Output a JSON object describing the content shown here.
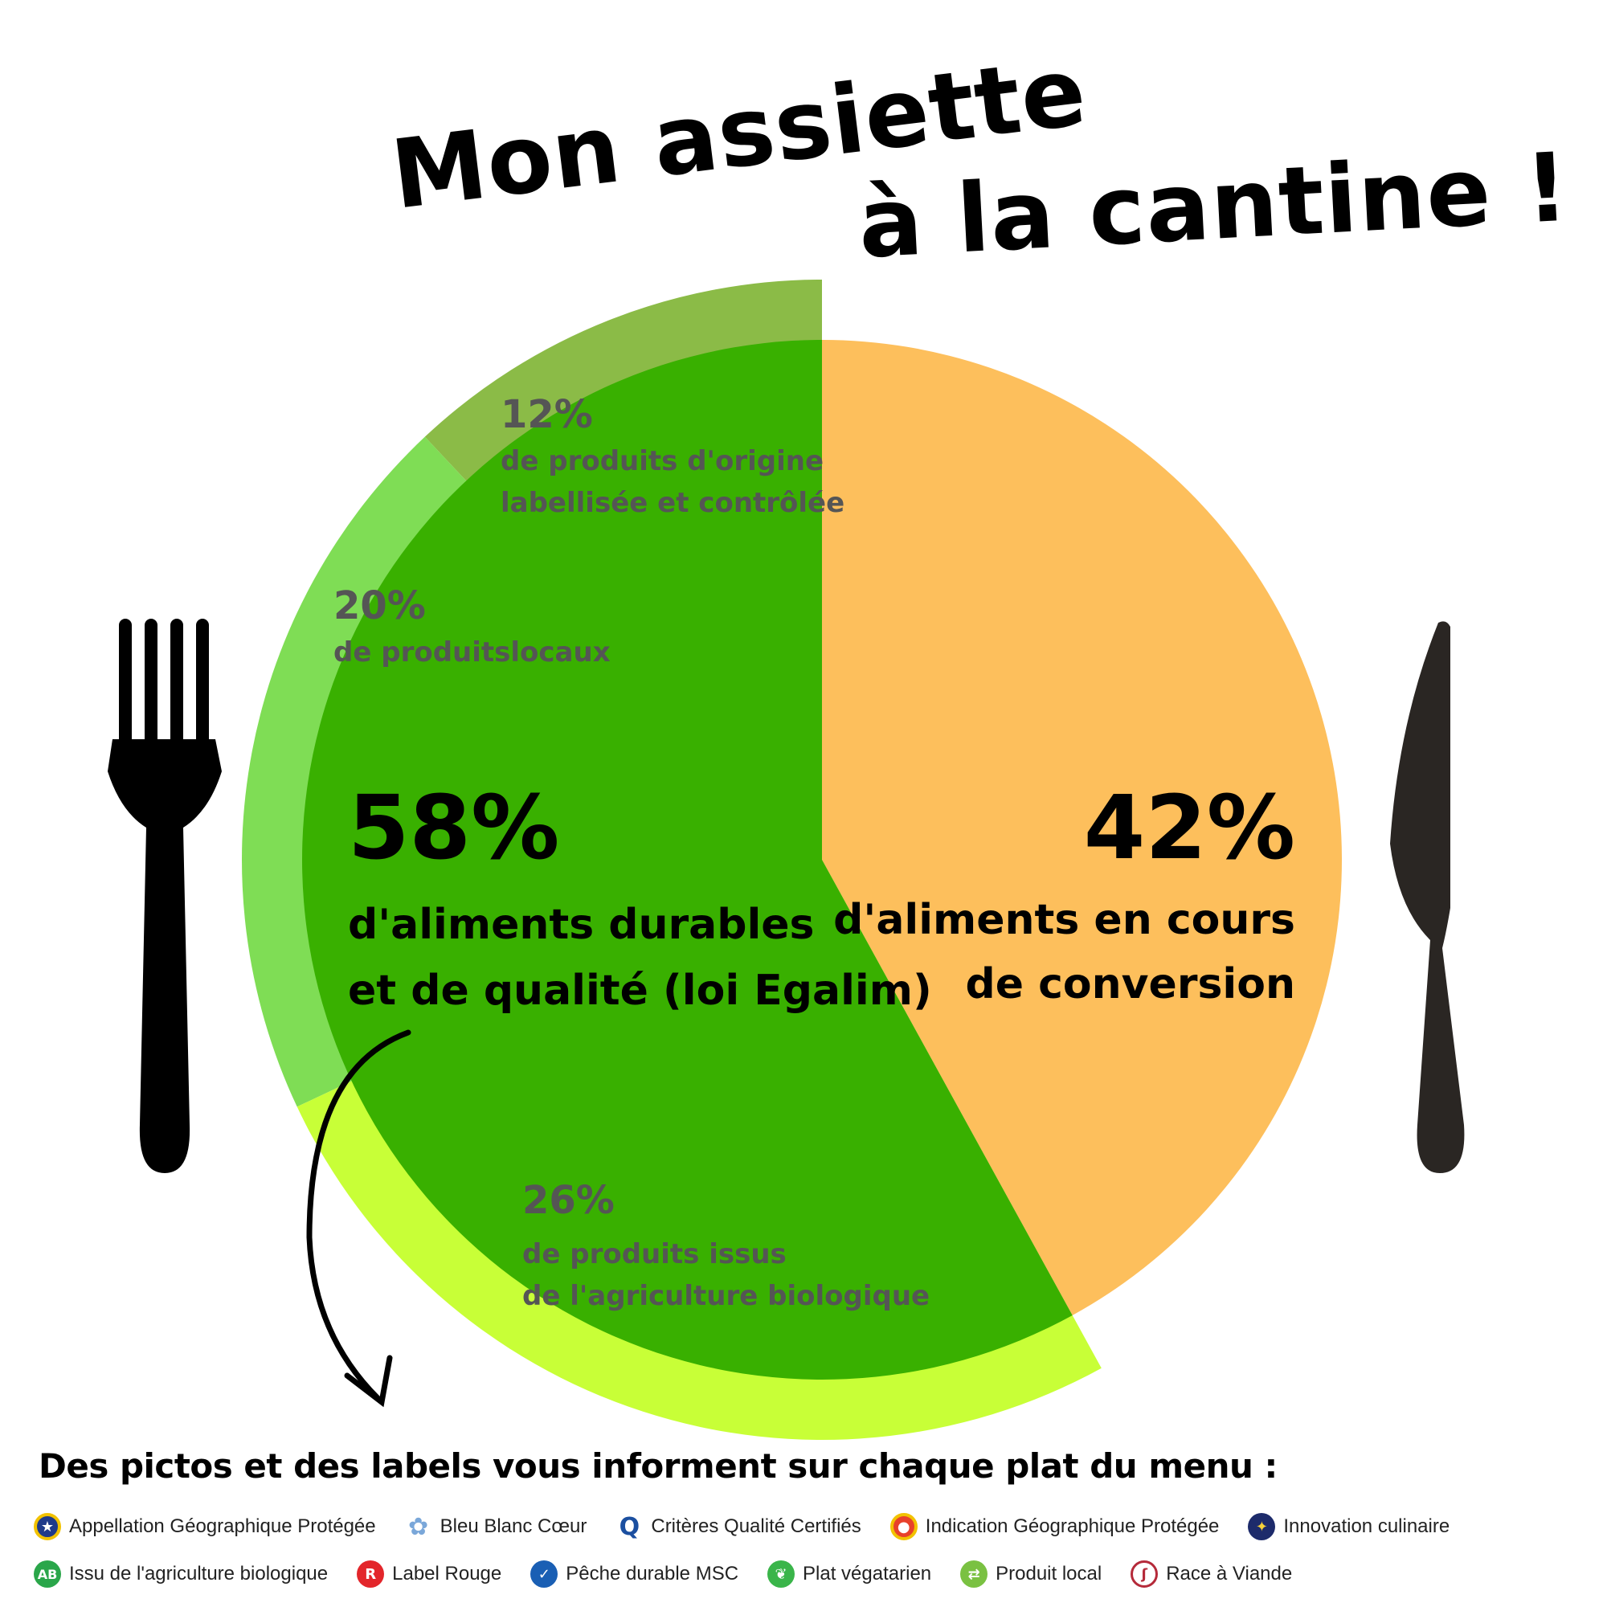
{
  "title": {
    "line1": "Mon assiette",
    "line2": "à la cantine !"
  },
  "chart_data": {
    "type": "pie",
    "title": "Mon assiette à la cantine !",
    "slices": [
      {
        "value": 58,
        "label": "58%",
        "description_line1": "d'aliments durables",
        "description_line2": "et de qualité (loi Egalim)",
        "color": "#39b000"
      },
      {
        "value": 42,
        "label": "42%",
        "description_line1": "d'aliments en cours",
        "description_line2": "de conversion",
        "color": "#fdbf5c"
      }
    ],
    "breakdown_of_58": [
      {
        "value": 12,
        "label": "12%",
        "description_line1": "de produits d'origine",
        "description_line2": "labellisée et contrôlée",
        "color": "#8bbb47"
      },
      {
        "value": 20,
        "label": "20%",
        "description_line1": "de produitslocaux",
        "description_line2": "",
        "color": "#7fdd55"
      },
      {
        "value": 26,
        "label": "26%",
        "description_line1": "de produits issus",
        "description_line2": "de l'agriculture biologique",
        "color": "#c8ff37"
      }
    ]
  },
  "legend": {
    "heading": "Des pictos et des labels vous informent sur chaque plat du menu :",
    "row1": [
      {
        "label": "Appellation Géographique Protégée",
        "icon": "aop-seal-icon",
        "color": "#f2c200"
      },
      {
        "label": "Bleu Blanc Cœur",
        "icon": "flower-icon",
        "color": "#7aa7d9"
      },
      {
        "label": "Critères Qualité Certifiés",
        "icon": "ccp-icon",
        "color": "#1b4fa0"
      },
      {
        "label": "Indication Géographique Protégée",
        "icon": "igp-seal-icon",
        "color": "#e8412b"
      },
      {
        "label": "Innovation culinaire",
        "icon": "lightbulb-icon",
        "color": "#1d2b6b"
      }
    ],
    "row2": [
      {
        "label": "Issu de l'agriculture biologique",
        "icon": "ab-icon",
        "color": "#2aa64a"
      },
      {
        "label": "Label Rouge",
        "icon": "label-rouge-icon",
        "color": "#e3262b"
      },
      {
        "label": "Pêche durable MSC",
        "icon": "fish-icon",
        "color": "#1a5fb4"
      },
      {
        "label": "Plat végatarien",
        "icon": "leaf-icon",
        "color": "#3ab54a"
      },
      {
        "label": "Produit local",
        "icon": "signpost-icon",
        "color": "#7ac142"
      },
      {
        "label": "Race à Viande",
        "icon": "cow-icon",
        "color": "#b52a3a"
      }
    ]
  }
}
